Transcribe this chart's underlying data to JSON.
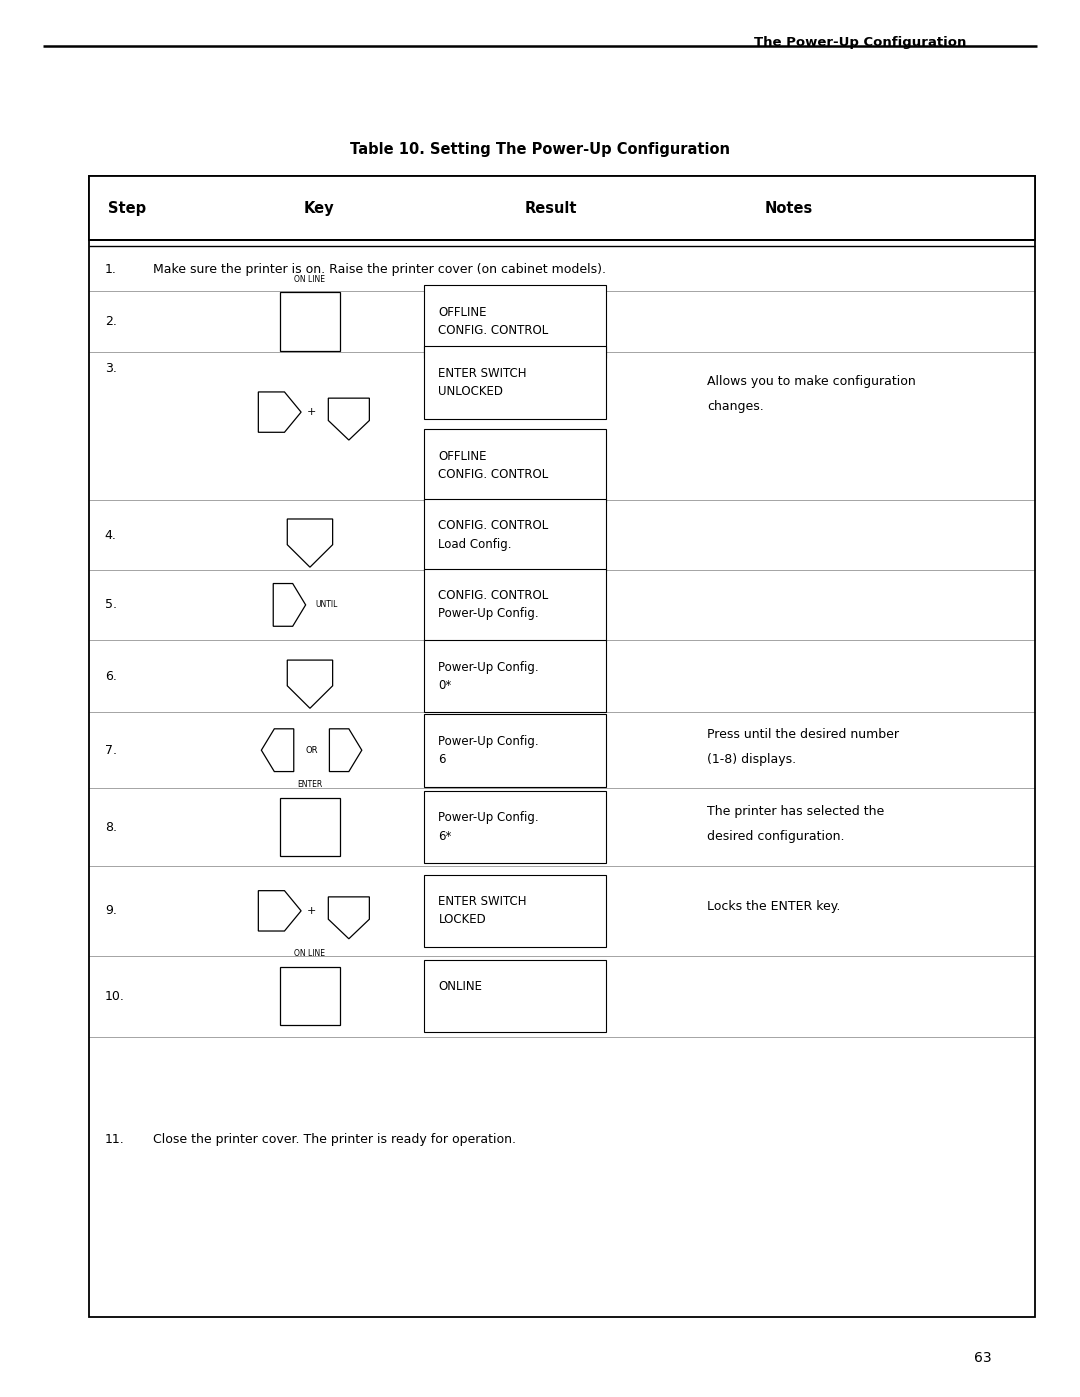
{
  "title": "Table 10. Setting The Power-Up Configuration",
  "header_title": "The Power-Up Configuration",
  "page_number": "63",
  "col_headers": [
    "Step",
    "Key",
    "Result",
    "Notes"
  ],
  "bg_color": "#ffffff"
}
